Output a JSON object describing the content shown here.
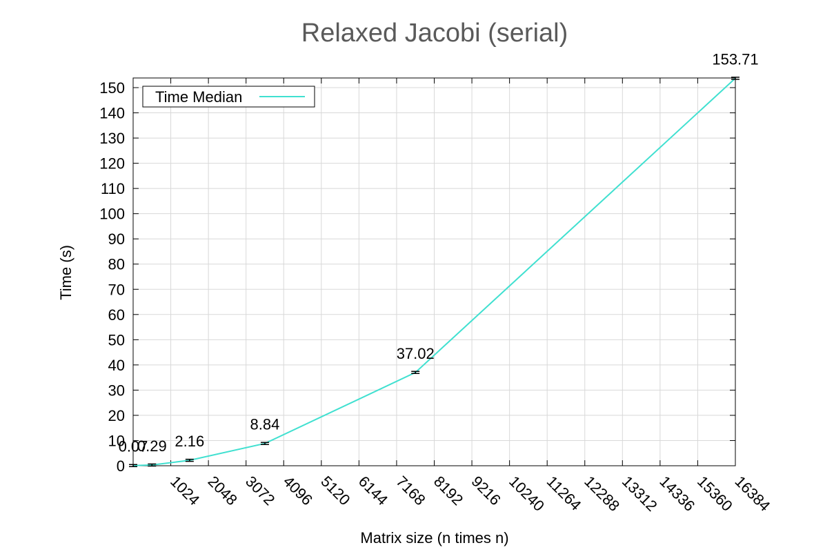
{
  "chart_data": {
    "type": "line",
    "title": "Relaxed Jacobi (serial)",
    "xlabel": "Matrix size (n times n)",
    "ylabel": "Time (s)",
    "xlim": [
      0,
      16384
    ],
    "ylim": [
      0,
      150
    ],
    "xticks": [
      1024,
      2048,
      3072,
      4096,
      5120,
      6144,
      7168,
      8192,
      9216,
      10240,
      11264,
      12288,
      13312,
      14336,
      15360,
      16384
    ],
    "yticks": [
      0,
      10,
      20,
      30,
      40,
      50,
      60,
      70,
      80,
      90,
      100,
      110,
      120,
      130,
      140,
      150
    ],
    "grid": true,
    "legend_position": "top-left",
    "series": [
      {
        "name": "Time Median",
        "color": "#40e0d0",
        "x": [
          0,
          512,
          1536,
          3584,
          7680,
          16384
        ],
        "y": [
          0.07,
          0.29,
          2.16,
          8.84,
          37.02,
          153.71
        ],
        "labels": [
          "0.07",
          "0.29",
          "2.16",
          "8.84",
          "37.02",
          "153.71"
        ]
      }
    ]
  }
}
